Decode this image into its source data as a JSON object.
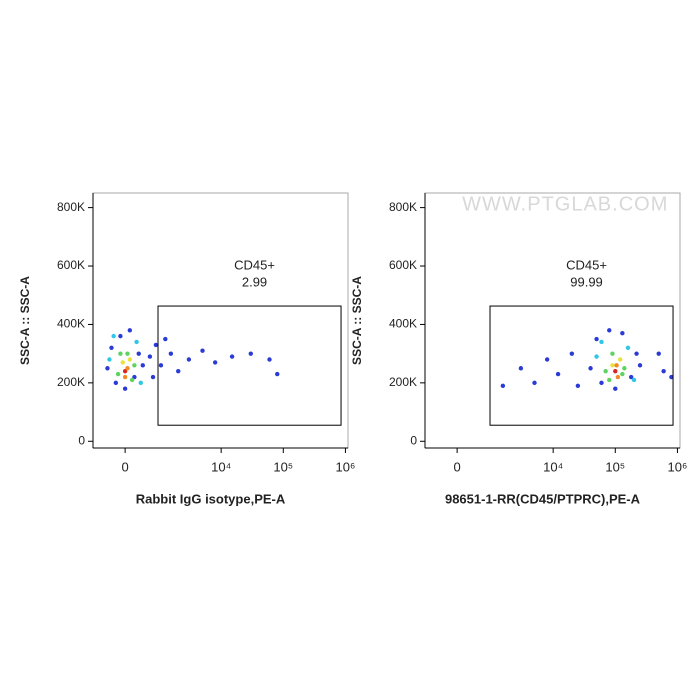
{
  "chart_data": [
    {
      "type": "scatter",
      "x_label": "Rabbit IgG isotype,PE-A",
      "y_label": "SSC-A :: SSC-A",
      "xscale": "biexponential",
      "xlim": [
        -850,
        1100000
      ],
      "ylim": [
        -23000,
        850000
      ],
      "xticks": [
        0,
        {
          "value": 10000,
          "label": "10⁴"
        },
        {
          "value": 100000,
          "label": "10⁵"
        },
        {
          "value": 1000000,
          "label": "10⁶"
        }
      ],
      "yticks": [
        0,
        {
          "value": 200000,
          "label": "200K"
        },
        {
          "value": 400000,
          "label": "400K"
        },
        {
          "value": 600000,
          "label": "600K"
        },
        {
          "value": 800000,
          "label": "800K"
        }
      ],
      "gate": {
        "x": [
          880,
          850000
        ],
        "y": [
          55000,
          463000
        ],
        "label": "CD45+",
        "percent": 2.99
      },
      "x": [
        -400,
        -300,
        -200,
        -100,
        0,
        100,
        200,
        300,
        400,
        -350,
        -150,
        -50,
        0,
        50,
        100,
        150,
        250,
        -250,
        350,
        50,
        -100,
        0,
        200,
        600,
        800,
        1000,
        1500,
        2000,
        3000,
        5000,
        8000,
        15000,
        30000,
        60000,
        80000,
        1200,
        700
      ],
      "values": [
        250000,
        320000,
        200000,
        360000,
        180000,
        380000,
        220000,
        300000,
        260000,
        280000,
        230000,
        270000,
        240000,
        250000,
        280000,
        210000,
        340000,
        360000,
        200000,
        300000,
        300000,
        220000,
        260000,
        290000,
        330000,
        260000,
        300000,
        240000,
        280000,
        310000,
        270000,
        290000,
        300000,
        280000,
        230000,
        350000,
        220000
      ],
      "point_colors": [
        "#2b3bd6",
        "#2b3bd6",
        "#2b3bd6",
        "#2b3bd6",
        "#2b3bd6",
        "#2b3bd6",
        "#2b3bd6",
        "#2b3bd6",
        "#2b3bd6",
        "#2fc7e6",
        "#5fd35f",
        "#e8e23a",
        "#d8261f",
        "#f08a24",
        "#e8e23a",
        "#5fd35f",
        "#2fc7e6",
        "#2fc7e6",
        "#2fc7e6",
        "#5fd35f",
        "#5fd35f",
        "#f08a24",
        "#5fd35f",
        "#2b3bd6",
        "#2b3bd6",
        "#2b3bd6",
        "#2b3bd6",
        "#2b3bd6",
        "#2b3bd6",
        "#2b3bd6",
        "#2b3bd6",
        "#2b3bd6",
        "#2b3bd6",
        "#2b3bd6",
        "#2b3bd6",
        "#2b3bd6",
        "#2b3bd6"
      ]
    },
    {
      "type": "scatter",
      "x_label": "98651-1-RR(CD45/PTPRC),PE-A",
      "y_label": "SSC-A :: SSC-A",
      "xscale": "biexponential",
      "watermark": "WWW.PTGLAB.COM",
      "xlim": [
        -850,
        1100000
      ],
      "ylim": [
        -23000,
        850000
      ],
      "xticks": [
        0,
        {
          "value": 10000,
          "label": "10⁴"
        },
        {
          "value": 100000,
          "label": "10⁵"
        },
        {
          "value": 1000000,
          "label": "10⁶"
        }
      ],
      "yticks": [
        0,
        {
          "value": 200000,
          "label": "200K"
        },
        {
          "value": 400000,
          "label": "400K"
        },
        {
          "value": 600000,
          "label": "600K"
        },
        {
          "value": 800000,
          "label": "800K"
        }
      ],
      "gate": {
        "x": [
          880,
          850000
        ],
        "y": [
          55000,
          463000
        ],
        "label": "CD45+",
        "percent": 99.99
      },
      "x": [
        40000,
        50000,
        60000,
        80000,
        100000,
        130000,
        180000,
        220000,
        250000,
        50000,
        70000,
        90000,
        100000,
        110000,
        120000,
        140000,
        160000,
        60000,
        200000,
        90000,
        80000,
        105000,
        130000,
        1500,
        3000,
        5000,
        8000,
        12000,
        20000,
        25000,
        500000,
        600000,
        800000
      ],
      "values": [
        250000,
        350000,
        200000,
        380000,
        180000,
        370000,
        220000,
        300000,
        260000,
        290000,
        240000,
        260000,
        240000,
        220000,
        280000,
        250000,
        320000,
        340000,
        210000,
        300000,
        210000,
        260000,
        230000,
        190000,
        250000,
        200000,
        280000,
        230000,
        300000,
        190000,
        300000,
        240000,
        220000
      ],
      "point_colors": [
        "#2b3bd6",
        "#2b3bd6",
        "#2b3bd6",
        "#2b3bd6",
        "#2b3bd6",
        "#2b3bd6",
        "#2b3bd6",
        "#2b3bd6",
        "#2b3bd6",
        "#2fc7e6",
        "#5fd35f",
        "#e8e23a",
        "#d8261f",
        "#f08a24",
        "#e8e23a",
        "#5fd35f",
        "#2fc7e6",
        "#2fc7e6",
        "#2fc7e6",
        "#5fd35f",
        "#5fd35f",
        "#f08a24",
        "#5fd35f",
        "#2b3bd6",
        "#2b3bd6",
        "#2b3bd6",
        "#2b3bd6",
        "#2b3bd6",
        "#2b3bd6",
        "#2b3bd6",
        "#2b3bd6",
        "#2b3bd6",
        "#2b3bd6"
      ]
    }
  ]
}
